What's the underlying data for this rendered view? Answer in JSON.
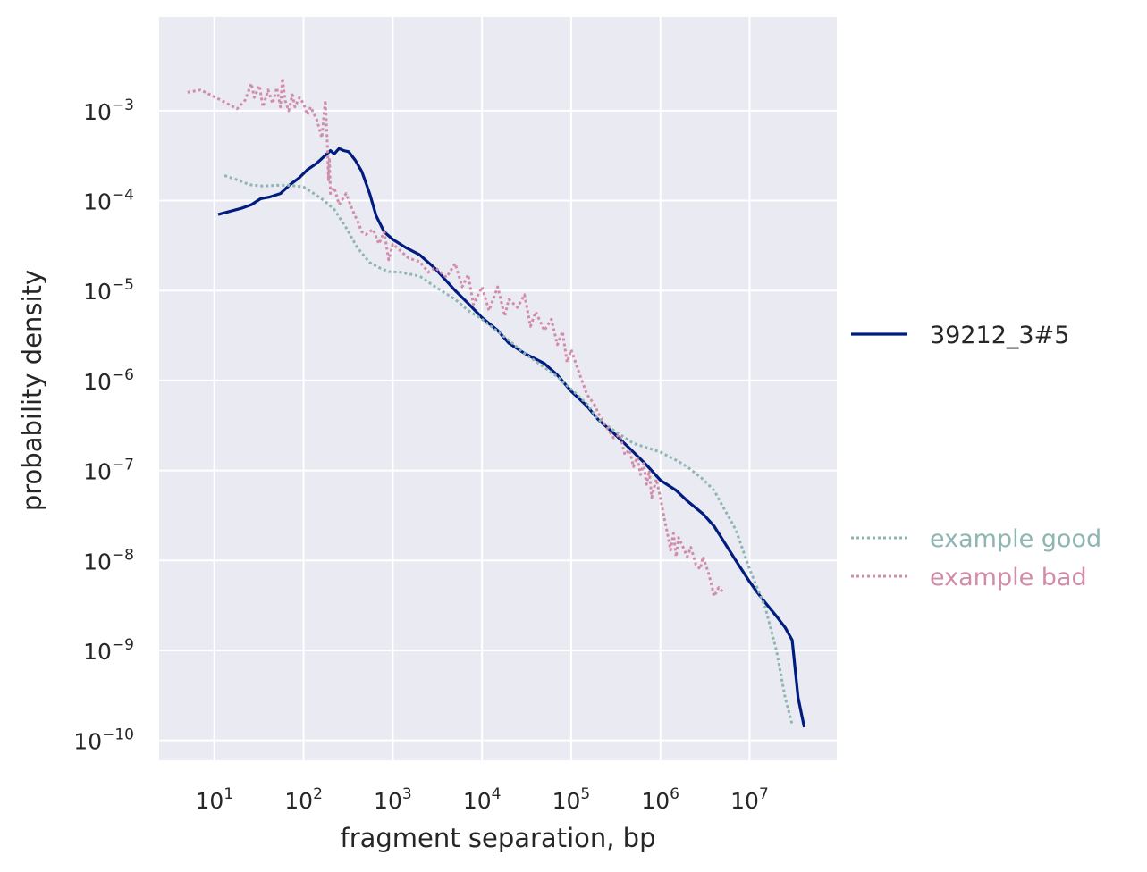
{
  "chart_data": {
    "type": "line",
    "xscale": "log",
    "yscale": "log",
    "xlabel": "fragment separation, bp",
    "ylabel": "probability density",
    "xlim": [
      2.4,
      95000000
    ],
    "ylim": [
      6e-11,
      0.011
    ],
    "grid": true,
    "xticks": [
      {
        "base": "10",
        "exp": "1",
        "value": 10
      },
      {
        "base": "10",
        "exp": "2",
        "value": 100
      },
      {
        "base": "10",
        "exp": "3",
        "value": 1000
      },
      {
        "base": "10",
        "exp": "4",
        "value": 10000
      },
      {
        "base": "10",
        "exp": "5",
        "value": 100000
      },
      {
        "base": "10",
        "exp": "6",
        "value": 1000000
      },
      {
        "base": "10",
        "exp": "7",
        "value": 10000000
      }
    ],
    "yticks": [
      {
        "base": "10",
        "exp": "−3",
        "value": 0.001
      },
      {
        "base": "10",
        "exp": "−4",
        "value": 0.0001
      },
      {
        "base": "10",
        "exp": "−5",
        "value": 1e-05
      },
      {
        "base": "10",
        "exp": "−6",
        "value": 1e-06
      },
      {
        "base": "10",
        "exp": "−7",
        "value": 1e-07
      },
      {
        "base": "10",
        "exp": "−8",
        "value": 1e-08
      },
      {
        "base": "10",
        "exp": "−9",
        "value": 1e-09
      },
      {
        "base": "10",
        "exp": "−10",
        "value": 1e-10
      }
    ],
    "legend_groups": [
      {
        "placement": "right-middle",
        "entries": [
          "39212_3#5"
        ]
      },
      {
        "placement": "right-lower",
        "entries": [
          "example good",
          "example bad"
        ]
      }
    ],
    "series": [
      {
        "name": "39212_3#5",
        "style": "solid",
        "color": "#001c7f",
        "x": [
          11,
          15,
          20,
          26,
          33,
          42,
          55,
          70,
          90,
          110,
          140,
          170,
          200,
          220,
          250,
          280,
          320,
          380,
          450,
          550,
          650,
          800,
          1000,
          1400,
          2000,
          3000,
          5000,
          7000,
          10000,
          15000,
          20000,
          30000,
          50000,
          70000,
          100000,
          150000,
          200000,
          300000,
          500000,
          700000,
          1000000,
          1500000,
          2000000,
          3000000,
          4000000,
          5000000,
          7000000,
          10000000,
          12000000,
          15000000,
          20000000,
          25000000,
          30000000,
          35000000,
          41000000
        ],
        "y": [
          7e-05,
          7.6e-05,
          8.2e-05,
          9e-05,
          0.000105,
          0.00011,
          0.00012,
          0.00015,
          0.00018,
          0.00022,
          0.00026,
          0.00031,
          0.00036,
          0.00033,
          0.00038,
          0.00036,
          0.00035,
          0.00028,
          0.00021,
          0.00012,
          6.8e-05,
          4.5e-05,
          3.7e-05,
          3e-05,
          2.5e-05,
          1.75e-05,
          1e-05,
          7.2e-06,
          5e-06,
          3.6e-06,
          2.6e-06,
          2e-06,
          1.55e-06,
          1.15e-06,
          7.6e-07,
          5.2e-07,
          3.7e-07,
          2.6e-07,
          1.6e-07,
          1.15e-07,
          7.8e-08,
          6e-08,
          4.6e-08,
          3.3e-08,
          2.4e-08,
          1.7e-08,
          1e-08,
          5.8e-09,
          4.5e-09,
          3.4e-09,
          2.4e-09,
          1.8e-09,
          1.3e-09,
          3e-10,
          1.4e-10
        ]
      },
      {
        "name": "example good",
        "style": "dotted",
        "color": "#8db5b1",
        "x": [
          13,
          18,
          25,
          35,
          50,
          70,
          100,
          130,
          170,
          220,
          300,
          400,
          550,
          700,
          900,
          1200,
          2000,
          3000,
          5000,
          7000,
          10000,
          15000,
          20000,
          30000,
          50000,
          70000,
          100000,
          150000,
          200000,
          300000,
          500000,
          700000,
          1000000,
          1500000,
          2000000,
          3000000,
          4000000,
          5000000,
          7000000,
          10000000,
          15000000,
          20000000,
          25000000,
          30000000
        ],
        "y": [
          0.00019,
          0.00017,
          0.00015,
          0.000145,
          0.000148,
          0.000148,
          0.000142,
          0.00012,
          0.0001,
          8e-05,
          5e-05,
          3e-05,
          2.05e-05,
          1.8e-05,
          1.62e-05,
          1.6e-05,
          1.45e-05,
          1.1e-05,
          8e-06,
          6e-06,
          4.8e-06,
          3.5e-06,
          2.8e-06,
          2e-06,
          1.4e-06,
          1.1e-06,
          8e-07,
          5.5e-07,
          3.7e-07,
          2.8e-07,
          2e-07,
          1.8e-07,
          1.6e-07,
          1.3e-07,
          1.1e-07,
          8e-08,
          6e-08,
          4e-08,
          2.2e-08,
          8e-09,
          3e-09,
          1e-09,
          3e-10,
          1.5e-10
        ]
      },
      {
        "name": "example bad",
        "style": "dotted",
        "color": "#d08ca8",
        "x": [
          5,
          7,
          9,
          12,
          15,
          18,
          22,
          26,
          28,
          32,
          35,
          40,
          45,
          50,
          55,
          58,
          62,
          68,
          75,
          80,
          90,
          100,
          110,
          120,
          140,
          160,
          175,
          185,
          190,
          195,
          200,
          220,
          250,
          300,
          350,
          400,
          450,
          500,
          600,
          700,
          800,
          900,
          1000,
          1200,
          1500,
          2000,
          2500,
          3000,
          4000,
          5000,
          6000,
          7000,
          8000,
          10000,
          12000,
          15000,
          18000,
          20000,
          25000,
          30000,
          35000,
          40000,
          50000,
          60000,
          70000,
          80000,
          90000,
          100000,
          120000,
          150000,
          180000,
          200000,
          250000,
          300000,
          350000,
          400000,
          450000,
          500000,
          550000,
          600000,
          650000,
          700000,
          750000,
          800000,
          900000,
          1000000,
          1100000,
          1200000,
          1300000,
          1400000,
          1500000,
          1600000,
          1800000,
          2000000,
          2200000,
          2500000,
          2800000,
          3000000,
          3500000,
          4000000,
          4500000,
          5000000
        ],
        "y": [
          0.0016,
          0.0017,
          0.0015,
          0.0013,
          0.00115,
          0.00105,
          0.0013,
          0.002,
          0.0014,
          0.0019,
          0.0011,
          0.0017,
          0.0012,
          0.0018,
          0.0011,
          0.0023,
          0.0013,
          0.001,
          0.0015,
          0.0011,
          0.0014,
          0.0012,
          0.0009,
          0.0011,
          0.0008,
          0.0005,
          0.0013,
          0.0004,
          0.00017,
          0.0003,
          0.00012,
          0.00014,
          9e-05,
          0.00012,
          8e-05,
          6e-05,
          4.5e-05,
          4.2e-05,
          4.8e-05,
          3.3e-05,
          4.5e-05,
          2.2e-05,
          3.3e-05,
          2.8e-05,
          2.3e-05,
          2.1e-05,
          1.6e-05,
          1.8e-05,
          1.4e-05,
          2e-05,
          1.1e-05,
          1.5e-05,
          7e-06,
          1.1e-05,
          6e-06,
          1.1e-05,
          5.2e-06,
          8e-06,
          6.5e-06,
          9e-06,
          4e-06,
          5.8e-06,
          3.6e-06,
          4.8e-06,
          2.5e-06,
          3.5e-06,
          1.6e-06,
          2.2e-06,
          1.3e-06,
          7e-07,
          5.5e-07,
          4.4e-07,
          3e-07,
          2.3e-07,
          2.5e-07,
          1.5e-07,
          1.7e-07,
          1.1e-07,
          1.4e-07,
          9e-08,
          1.2e-07,
          7e-08,
          1e-07,
          5e-08,
          8e-08,
          5e-08,
          3e-08,
          2e-08,
          1.3e-08,
          2e-08,
          1.1e-08,
          1.8e-08,
          1.4e-08,
          1.1e-08,
          1.4e-08,
          9e-09,
          8e-09,
          1.1e-08,
          7e-09,
          4e-09,
          5e-09,
          4.5e-09
        ]
      }
    ]
  }
}
